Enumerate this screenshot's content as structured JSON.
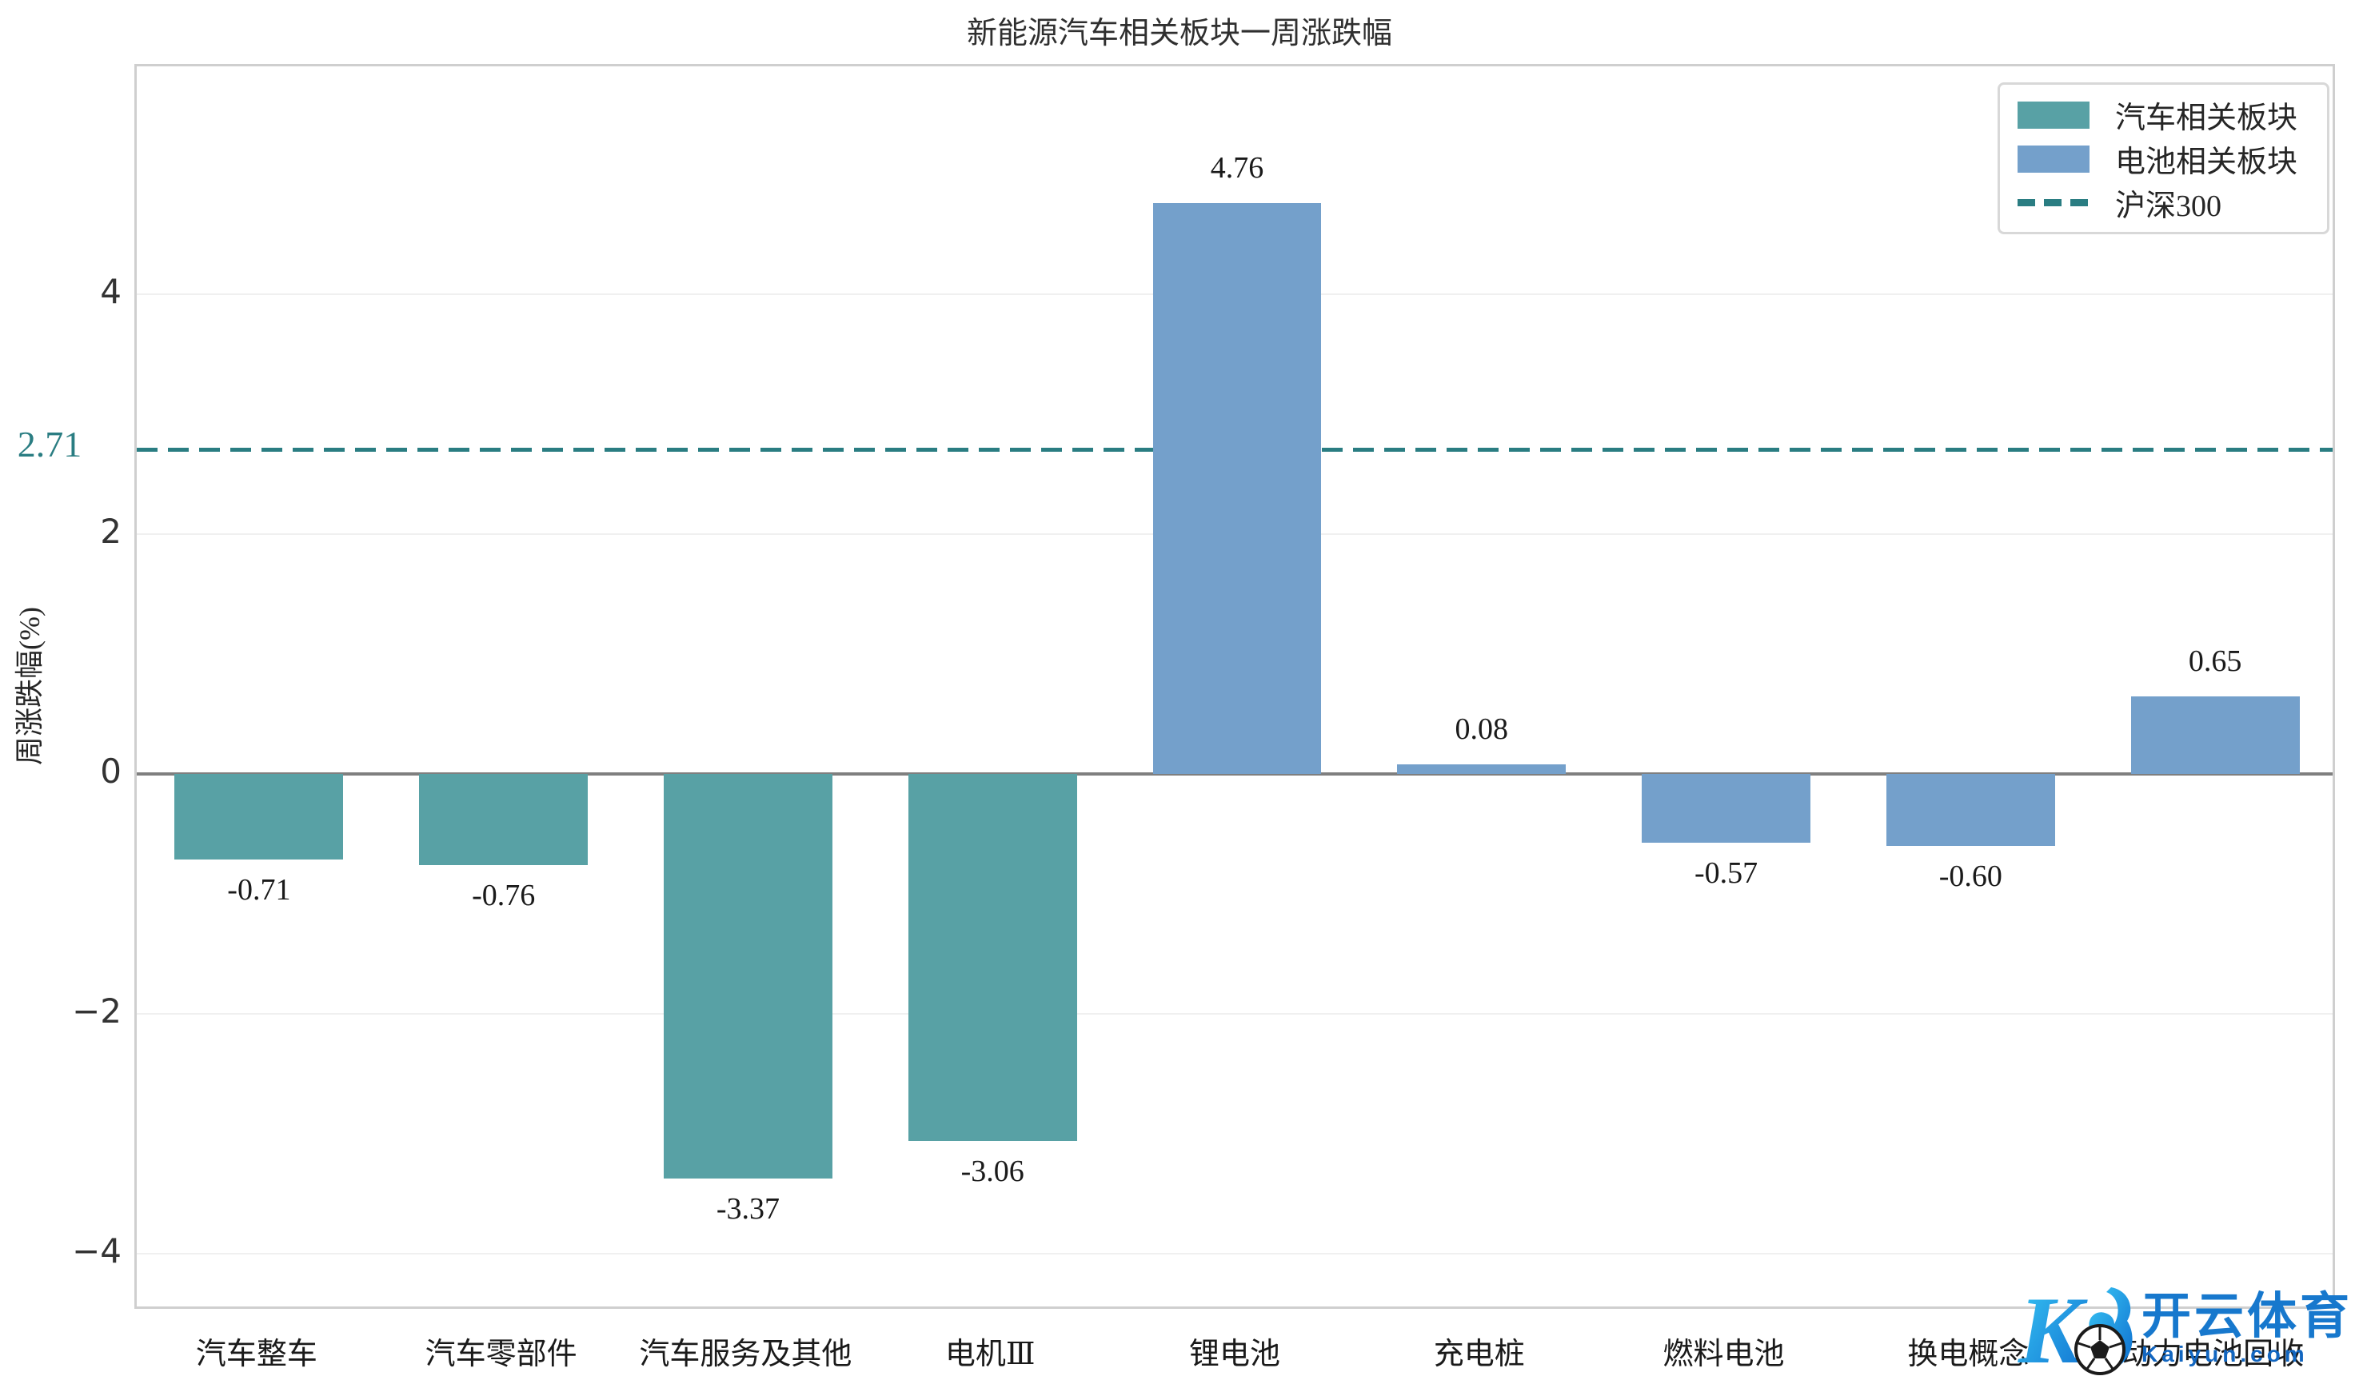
{
  "title": "新能源汽车相关板块一周涨跌幅",
  "legend": [
    {
      "label": "汽车相关板块",
      "type": "swatch",
      "color": "#58a1a5"
    },
    {
      "label": "电池相关板块",
      "type": "swatch",
      "color": "#74a0cb"
    },
    {
      "label": "沪深300",
      "type": "dash",
      "color": "#2a7d82"
    }
  ],
  "chart_data": {
    "type": "bar",
    "title": "新能源汽车相关板块一周涨跌幅",
    "ylabel": "周涨跌幅(%)",
    "ylim": [
      -4.48,
      5.9
    ],
    "yticks": [
      {
        "value": 4,
        "label": "4"
      },
      {
        "value": 2,
        "label": "2"
      },
      {
        "value": 0,
        "label": "0"
      },
      {
        "value": -2,
        "label": "−2"
      },
      {
        "value": -4,
        "label": "−4"
      }
    ],
    "grid": true,
    "legend_position": "upper right",
    "series": [
      {
        "name": "汽车相关板块",
        "color": "#58a1a5"
      },
      {
        "name": "电池相关板块",
        "color": "#74a0cb"
      }
    ],
    "bars": [
      {
        "category": "汽车整车",
        "value": -0.71,
        "label": "-0.71",
        "series": "汽车相关板块"
      },
      {
        "category": "汽车零部件",
        "value": -0.76,
        "label": "-0.76",
        "series": "汽车相关板块"
      },
      {
        "category": "汽车服务及其他",
        "value": -3.37,
        "label": "-3.37",
        "series": "汽车相关板块"
      },
      {
        "category": "电机Ⅲ",
        "value": -3.06,
        "label": "-3.06",
        "series": "汽车相关板块"
      },
      {
        "category": "锂电池",
        "value": 4.76,
        "label": "4.76",
        "series": "电池相关板块"
      },
      {
        "category": "充电桩",
        "value": 0.08,
        "label": "0.08",
        "series": "电池相关板块"
      },
      {
        "category": "燃料电池",
        "value": -0.57,
        "label": "-0.57",
        "series": "电池相关板块"
      },
      {
        "category": "换电概念",
        "value": -0.6,
        "label": "-0.60",
        "series": "电池相关板块"
      },
      {
        "category": "动力电池回收",
        "value": 0.65,
        "label": "0.65",
        "series": "电池相关板块"
      }
    ],
    "reference_line": {
      "name": "沪深300",
      "value": 2.71,
      "label": "2.71",
      "color": "#2a7d82",
      "style": "dashed"
    }
  },
  "watermark": {
    "logo_letter": "K",
    "brand": "开云体育",
    "domain": "Kaiyun.com"
  }
}
